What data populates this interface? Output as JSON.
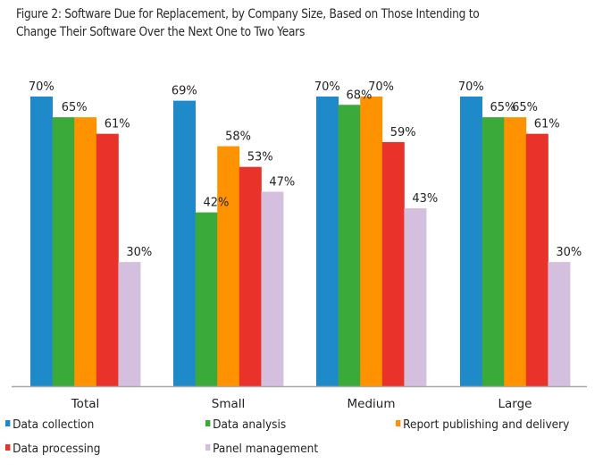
{
  "chart_data": {
    "type": "bar",
    "title": "Figure 2: Software Due for Replacement, by Company Size, Based on Those Intending to Change Their Software Over the Next One to Two Years",
    "title_lines": [
      "Figure 2: Software Due for Replacement, by Company Size, Based on Those Intending to",
      "Change Their Software Over the Next One to Two Years"
    ],
    "xlabel": "",
    "ylabel": "",
    "ylim": [
      0,
      70
    ],
    "grid": false,
    "legend_position": "bottom",
    "categories": [
      "Total",
      "Small",
      "Medium",
      "Large"
    ],
    "series": [
      {
        "name": "Data collection",
        "color": "#1f8ac9",
        "values": [
          70,
          69,
          70,
          70
        ]
      },
      {
        "name": "Data analysis",
        "color": "#3aaa3a",
        "values": [
          65,
          42,
          68,
          65
        ]
      },
      {
        "name": "Report publishing and delivery",
        "color": "#ff9200",
        "values": [
          65,
          58,
          70,
          65
        ]
      },
      {
        "name": "Data processing",
        "color": "#e8322a",
        "values": [
          61,
          53,
          59,
          61
        ]
      },
      {
        "name": "Panel management",
        "color": "#d5bfdf",
        "values": [
          30,
          47,
          43,
          30
        ]
      }
    ],
    "data_labels": [
      [
        {
          "series": 0,
          "text": "70%"
        },
        {
          "series": 1,
          "text": "65%"
        },
        {
          "series": 3,
          "text": "61%"
        },
        {
          "series": 4,
          "text": "30%"
        }
      ],
      [
        {
          "series": 0,
          "text": "69%"
        },
        {
          "series": 1,
          "text": "42%"
        },
        {
          "series": 2,
          "text": "58%"
        },
        {
          "series": 3,
          "text": "53%"
        },
        {
          "series": 4,
          "text": "47%"
        }
      ],
      [
        {
          "series": 0,
          "text": "70%"
        },
        {
          "series": 1,
          "text": "68%"
        },
        {
          "series": 2,
          "text": "70%"
        },
        {
          "series": 3,
          "text": "59%"
        },
        {
          "series": 4,
          "text": "43%"
        }
      ],
      [
        {
          "series": 0,
          "text": "70%"
        },
        {
          "series": 1,
          "text": "65%"
        },
        {
          "series": 2,
          "text": "65%"
        },
        {
          "series": 3,
          "text": "61%"
        },
        {
          "series": 4,
          "text": "30%"
        }
      ]
    ],
    "legend": [
      {
        "label": "Data collection",
        "color": "#1f8ac9"
      },
      {
        "label": "Data analysis",
        "color": "#3aaa3a"
      },
      {
        "label": "Report publishing and delivery",
        "color": "#ff9200"
      },
      {
        "label": "Data processing",
        "color": "#e8322a"
      },
      {
        "label": "Panel management",
        "color": "#d5bfdf"
      }
    ]
  }
}
